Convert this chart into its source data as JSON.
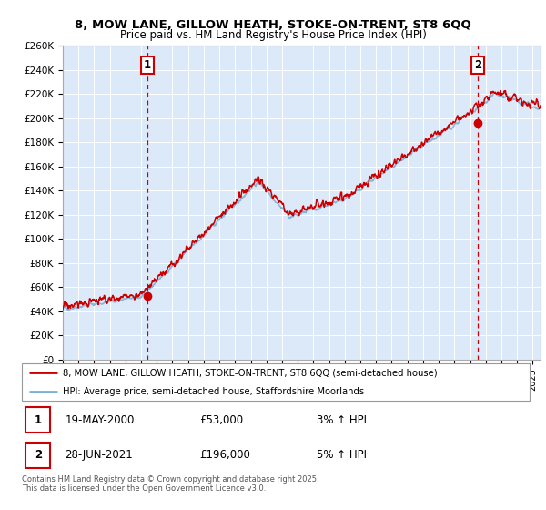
{
  "title1": "8, MOW LANE, GILLOW HEATH, STOKE-ON-TRENT, ST8 6QQ",
  "title2": "Price paid vs. HM Land Registry's House Price Index (HPI)",
  "background_color": "#ffffff",
  "plot_bg_color": "#dce9f8",
  "x_start": 1995.0,
  "x_end": 2025.5,
  "y_min": 0,
  "y_max": 260000,
  "y_ticks": [
    0,
    20000,
    40000,
    60000,
    80000,
    100000,
    120000,
    140000,
    160000,
    180000,
    200000,
    220000,
    240000,
    260000
  ],
  "y_tick_labels": [
    "£0",
    "£20K",
    "£40K",
    "£60K",
    "£80K",
    "£100K",
    "£120K",
    "£140K",
    "£160K",
    "£180K",
    "£200K",
    "£220K",
    "£240K",
    "£260K"
  ],
  "x_ticks": [
    1995,
    1996,
    1997,
    1998,
    1999,
    2000,
    2001,
    2002,
    2003,
    2004,
    2005,
    2006,
    2007,
    2008,
    2009,
    2010,
    2011,
    2012,
    2013,
    2014,
    2015,
    2016,
    2017,
    2018,
    2019,
    2020,
    2021,
    2022,
    2023,
    2024,
    2025
  ],
  "sale1_x": 2000.38,
  "sale1_y": 53000,
  "sale1_label": "1",
  "sale2_x": 2021.49,
  "sale2_y": 196000,
  "sale2_label": "2",
  "line1_color": "#cc0000",
  "line2_color": "#7bafd4",
  "grid_color": "#ffffff",
  "annotation_box_color": "#cc0000",
  "legend_line1": "8, MOW LANE, GILLOW HEATH, STOKE-ON-TRENT, ST8 6QQ (semi-detached house)",
  "legend_line2": "HPI: Average price, semi-detached house, Staffordshire Moorlands",
  "footer1": "Contains HM Land Registry data © Crown copyright and database right 2025.",
  "footer2": "This data is licensed under the Open Government Licence v3.0.",
  "table_row1": [
    "1",
    "19-MAY-2000",
    "£53,000",
    "3% ↑ HPI"
  ],
  "table_row2": [
    "2",
    "28-JUN-2021",
    "£196,000",
    "5% ↑ HPI"
  ]
}
